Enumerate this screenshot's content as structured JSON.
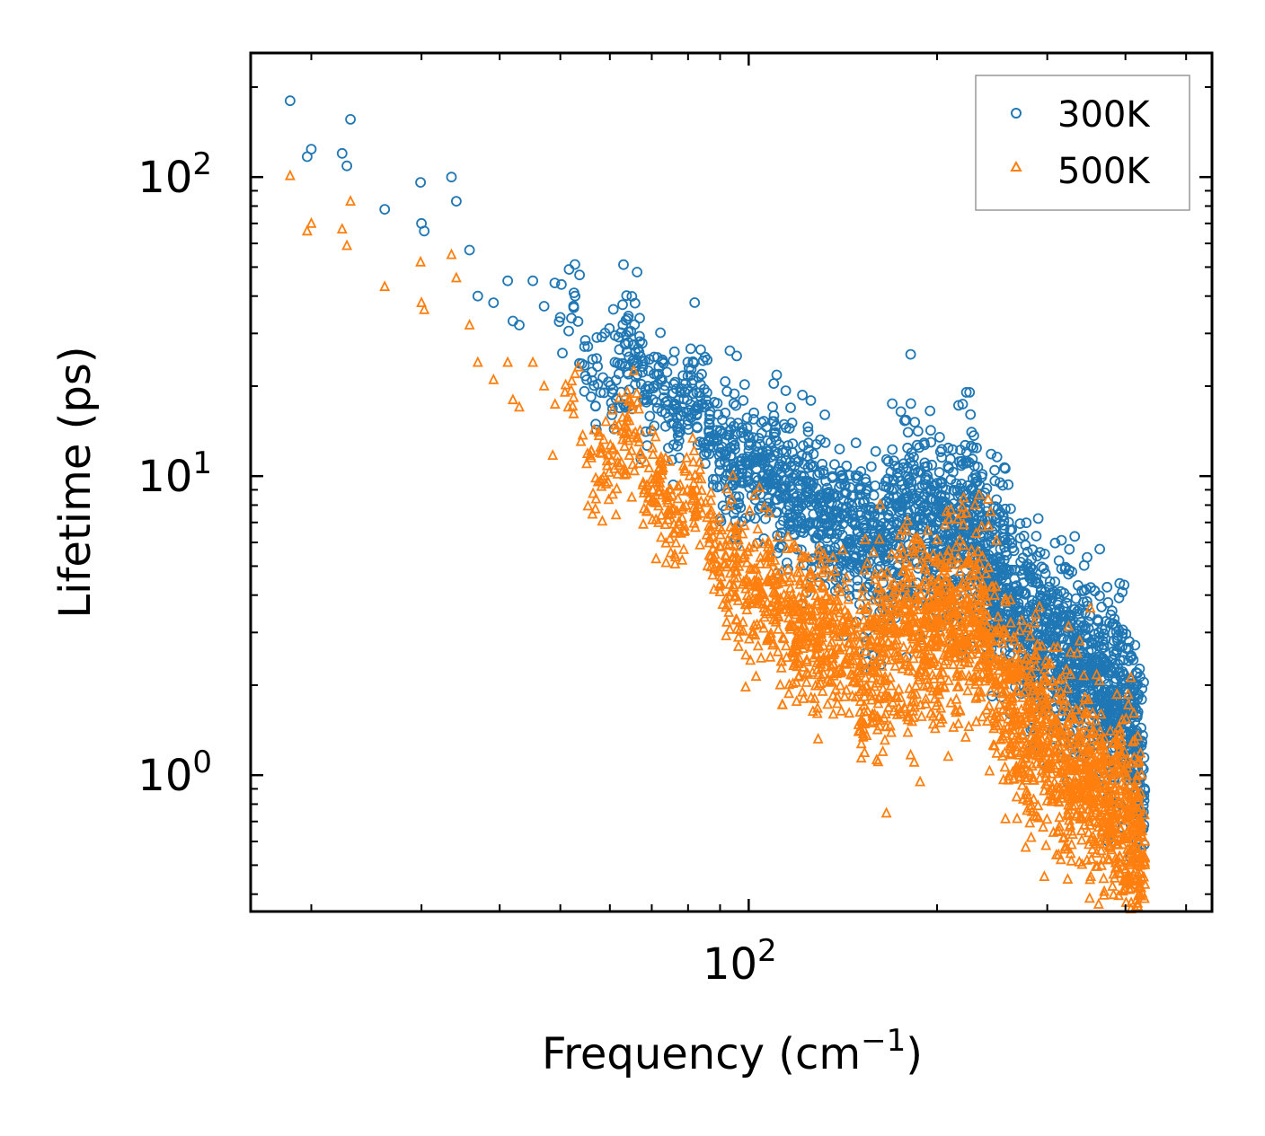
{
  "chart_data": {
    "type": "scatter",
    "title": "",
    "xlabel": "Frequency (cm",
    "xlabel_sup": "−1",
    "xlabel_suffix": ")",
    "ylabel": "Lifetime (ps)",
    "xscale": "log",
    "yscale": "log",
    "xlim": [
      16,
      550
    ],
    "ylim": [
      0.35,
      260
    ],
    "x_tick_labels": [
      {
        "value": 100,
        "base": "10",
        "exp": "2"
      }
    ],
    "y_tick_labels": [
      {
        "value": 1,
        "base": "10",
        "exp": "0"
      },
      {
        "value": 10,
        "base": "10",
        "exp": "1"
      },
      {
        "value": 100,
        "base": "10",
        "exp": "2"
      }
    ],
    "legend": {
      "position": "top-right",
      "entries": [
        "300K",
        "500K"
      ]
    },
    "series": [
      {
        "name": "300K",
        "color": "#1f77b4",
        "marker": "circle-open",
        "points": [
          [
            18.5,
            180
          ],
          [
            19.7,
            117
          ],
          [
            20.0,
            124
          ],
          [
            22.4,
            120
          ],
          [
            22.8,
            109
          ],
          [
            23.1,
            156
          ],
          [
            26.2,
            78
          ],
          [
            29.9,
            96
          ],
          [
            30.0,
            70
          ],
          [
            30.3,
            66
          ],
          [
            33.5,
            100
          ],
          [
            34.1,
            83
          ],
          [
            35.8,
            57
          ],
          [
            36.9,
            40
          ],
          [
            39.1,
            38
          ],
          [
            41.2,
            45
          ],
          [
            42.0,
            33
          ],
          [
            43.0,
            32
          ],
          [
            45.2,
            45
          ],
          [
            47.1,
            37
          ],
          [
            52.8,
            40
          ],
          [
            55.1,
            21
          ],
          [
            58.7,
            19
          ],
          [
            64.2,
            28
          ],
          [
            65.9,
            26
          ],
          [
            66.8,
            26
          ],
          [
            68.1,
            18
          ],
          [
            70.3,
            18
          ],
          [
            72.7,
            21
          ],
          [
            75.3,
            15
          ],
          [
            79.8,
            18
          ],
          [
            82.6,
            19
          ],
          [
            86.4,
            14
          ],
          [
            90.2,
            12
          ],
          [
            95.1,
            10.5
          ],
          [
            100.3,
            11
          ],
          [
            105.2,
            10
          ],
          [
            110.8,
            9.8
          ],
          [
            116.4,
            9.2
          ],
          [
            123.5,
            8.5
          ],
          [
            131.2,
            7.2
          ],
          [
            139.8,
            6.6
          ],
          [
            150.4,
            6.0
          ],
          [
            162.1,
            5.6
          ],
          [
            174.4,
            7.9
          ],
          [
            177.9,
            8.0
          ],
          [
            186.3,
            6.8
          ],
          [
            199.6,
            6.3
          ],
          [
            211.5,
            7.0
          ],
          [
            224.8,
            6.9
          ],
          [
            236.7,
            5.5
          ],
          [
            248.3,
            4.7
          ],
          [
            263.2,
            3.9
          ],
          [
            277.4,
            3.1
          ],
          [
            292.6,
            2.9
          ],
          [
            309.1,
            2.7
          ],
          [
            327.8,
            2.4
          ],
          [
            348.4,
            2.2
          ],
          [
            372.5,
            1.9
          ],
          [
            395.2,
            1.7
          ],
          [
            418.7,
            1.3
          ],
          [
            425.3,
            0.85
          ]
        ]
      },
      {
        "name": "500K",
        "color": "#ff7f0e",
        "marker": "triangle-open",
        "points": [
          [
            18.5,
            101
          ],
          [
            19.7,
            66
          ],
          [
            20.0,
            70
          ],
          [
            22.4,
            67
          ],
          [
            22.8,
            59
          ],
          [
            23.1,
            83
          ],
          [
            26.2,
            43
          ],
          [
            29.9,
            52
          ],
          [
            30.0,
            38
          ],
          [
            30.3,
            36
          ],
          [
            33.5,
            55
          ],
          [
            34.1,
            46
          ],
          [
            35.8,
            32
          ],
          [
            36.9,
            24
          ],
          [
            39.1,
            21
          ],
          [
            41.2,
            24
          ],
          [
            42.0,
            18
          ],
          [
            43.0,
            17
          ],
          [
            45.2,
            24
          ],
          [
            47.1,
            20
          ],
          [
            52.8,
            22
          ],
          [
            55.1,
            11
          ],
          [
            58.7,
            10
          ],
          [
            64.2,
            14
          ],
          [
            65.9,
            14
          ],
          [
            66.8,
            13
          ],
          [
            68.1,
            9
          ],
          [
            70.3,
            9
          ],
          [
            72.7,
            10.5
          ],
          [
            75.3,
            7.5
          ],
          [
            79.8,
            9
          ],
          [
            82.6,
            9
          ],
          [
            86.4,
            6.8
          ],
          [
            90.2,
            5.8
          ],
          [
            95.1,
            5.0
          ],
          [
            100.3,
            4.4
          ],
          [
            105.2,
            4.1
          ],
          [
            110.8,
            4.0
          ],
          [
            116.4,
            3.6
          ],
          [
            123.5,
            3.4
          ],
          [
            131.2,
            3.2
          ],
          [
            139.8,
            2.9
          ],
          [
            150.4,
            2.6
          ],
          [
            162.1,
            2.5
          ],
          [
            174.4,
            3.0
          ],
          [
            177.9,
            3.1
          ],
          [
            186.3,
            2.9
          ],
          [
            199.6,
            3.2
          ],
          [
            211.5,
            3.4
          ],
          [
            224.8,
            3.6
          ],
          [
            236.7,
            3.0
          ],
          [
            248.3,
            2.4
          ],
          [
            263.2,
            1.8
          ],
          [
            277.4,
            1.6
          ],
          [
            292.6,
            1.4
          ],
          [
            309.1,
            1.2
          ],
          [
            327.8,
            1.1
          ],
          [
            348.4,
            0.95
          ],
          [
            372.5,
            0.8
          ],
          [
            395.2,
            0.75
          ],
          [
            418.7,
            0.6
          ],
          [
            425.3,
            0.5
          ]
        ]
      }
    ]
  }
}
